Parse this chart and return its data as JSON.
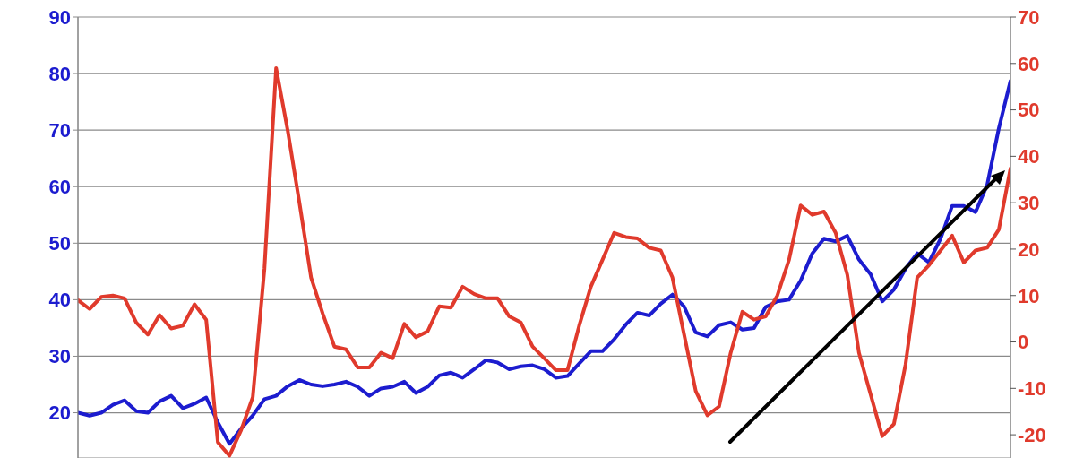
{
  "chart_data": {
    "type": "line",
    "categories": [
      null,
      null,
      null,
      null,
      null,
      null,
      null,
      null,
      null,
      null,
      null,
      null,
      null,
      null,
      null,
      null,
      null,
      null,
      null,
      null,
      null,
      null,
      null,
      null,
      null,
      null,
      null,
      null,
      null,
      null,
      null,
      null,
      null,
      null,
      null,
      null,
      null,
      null,
      null,
      null,
      null,
      null,
      null,
      null,
      null,
      null,
      null,
      null,
      null,
      null,
      null,
      null,
      null,
      null,
      null,
      null,
      null,
      null,
      null,
      null,
      null,
      null,
      null,
      null,
      null,
      null,
      null,
      null,
      null,
      null,
      null,
      null,
      null,
      null,
      null,
      null,
      null,
      null,
      null,
      null,
      null
    ],
    "series": [
      {
        "color": "#1c1ccf",
        "values": [
          20,
          19.5,
          20,
          21.4,
          22.2,
          20.3,
          20,
          22,
          23,
          20.8,
          21.6,
          22.7,
          18.3,
          14.5,
          17.2,
          19.5,
          22.4,
          23,
          24.7,
          25.8,
          25,
          24.7,
          25,
          25.5,
          24.6,
          23,
          24.3,
          24.6,
          25.5,
          23.5,
          24.6,
          26.6,
          27.1,
          26.2,
          27.7,
          29.3,
          28.9,
          27.7,
          28.2,
          28.4,
          27.7,
          26.2,
          26.5,
          28.7,
          30.9,
          30.9,
          33,
          35.6,
          37.7,
          37.2,
          39.3,
          40.9,
          38.8,
          34.2,
          33.5,
          35.5,
          36,
          34.7,
          35,
          38.7,
          39.7,
          40,
          43.4,
          48.2,
          50.8,
          50.3,
          51.3,
          47.1,
          44.5,
          39.7,
          41.8,
          45.5,
          48.2,
          46.6,
          50.8,
          56.6,
          56.6,
          55.5,
          60.3,
          70.3,
          78.7
        ]
      },
      {
        "color": "#e03a2c",
        "axis": "y2",
        "values": [
          9,
          7.1,
          9.7,
          10,
          9.4,
          4.2,
          1.6,
          5.8,
          2.9,
          3.5,
          8.1,
          4.8,
          -21.6,
          -24.5,
          -19,
          -11.9,
          15.8,
          59,
          45.5,
          30,
          13.9,
          6.1,
          -1,
          -1.6,
          -5.5,
          -5.5,
          -2.3,
          -3.5,
          3.9,
          1,
          2.3,
          7.7,
          7.4,
          11.9,
          10.3,
          9.4,
          9.4,
          5.5,
          4.2,
          -1,
          -3.5,
          -6.1,
          -6.1,
          3.5,
          11.9,
          17.7,
          23.5,
          22.6,
          22.3,
          20.3,
          19.7,
          13.9,
          1.6,
          -10.6,
          -15.8,
          -13.9,
          -2.3,
          6.5,
          4.8,
          5.5,
          10,
          17.7,
          29.4,
          27.4,
          28.1,
          23.5,
          14.5,
          -2.3,
          -11.3,
          -20.3,
          -17.7,
          -4.8,
          13.9,
          16.5,
          19.7,
          22.9,
          17.1,
          19.7,
          20.3,
          24.2,
          37.4
        ]
      }
    ],
    "ylim": [
      12,
      90
    ],
    "yticks": [
      20,
      30,
      40,
      50,
      60,
      70,
      80,
      90
    ],
    "y2lim": [
      -25,
      70
    ],
    "y2ticks": [
      -20,
      -10,
      0,
      10,
      20,
      30,
      40,
      50,
      60,
      70
    ],
    "grid": true
  }
}
